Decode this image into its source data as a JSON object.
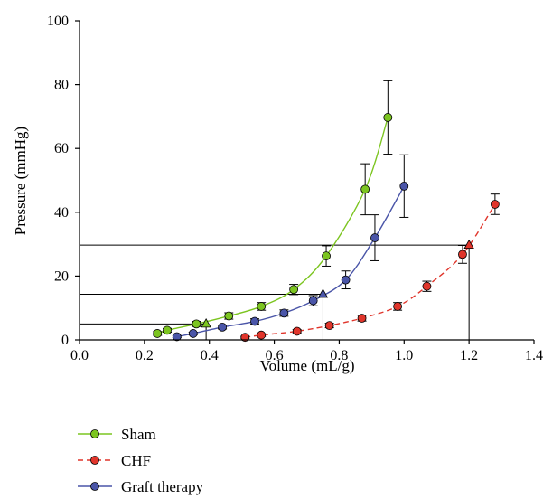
{
  "chart_data": {
    "type": "scatter",
    "xlabel": "Volume (mL/g)",
    "ylabel": "Pressure (mmHg)",
    "xlim": [
      0.0,
      1.4
    ],
    "ylim": [
      0,
      100
    ],
    "xticks": [
      "0.0",
      "0.2",
      "0.4",
      "0.6",
      "0.8",
      "1.0",
      "1.2",
      "1.4"
    ],
    "yticks": [
      "0",
      "20",
      "40",
      "60",
      "80",
      "100"
    ],
    "grid": false,
    "legend_position": "bottom-left",
    "series": [
      {
        "name": "Sham",
        "color": "#7cc520",
        "line_style": "solid",
        "points": [
          {
            "x": 0.24,
            "y": 2.0,
            "err": 0.6
          },
          {
            "x": 0.27,
            "y": 3.0,
            "err": 0.6
          },
          {
            "x": 0.36,
            "y": 5.0,
            "err": 0.8
          },
          {
            "x": 0.46,
            "y": 7.5,
            "err": 1.0
          },
          {
            "x": 0.56,
            "y": 10.5,
            "err": 1.2
          },
          {
            "x": 0.66,
            "y": 15.8,
            "err": 1.6
          },
          {
            "x": 0.76,
            "y": 26.3,
            "err": 3.2
          },
          {
            "x": 0.88,
            "y": 47.2,
            "err": 8.0
          },
          {
            "x": 0.95,
            "y": 69.7,
            "err": 11.5
          }
        ]
      },
      {
        "name": "CHF",
        "color": "#e0352b",
        "line_style": "dashed",
        "points": [
          {
            "x": 0.51,
            "y": 0.8,
            "err": 0.3
          },
          {
            "x": 0.56,
            "y": 1.5,
            "err": 0.4
          },
          {
            "x": 0.67,
            "y": 2.7,
            "err": 0.5
          },
          {
            "x": 0.77,
            "y": 4.5,
            "err": 0.7
          },
          {
            "x": 0.87,
            "y": 6.8,
            "err": 0.9
          },
          {
            "x": 0.98,
            "y": 10.5,
            "err": 1.2
          },
          {
            "x": 1.07,
            "y": 16.8,
            "err": 1.6
          },
          {
            "x": 1.18,
            "y": 26.8,
            "err": 2.8
          },
          {
            "x": 1.28,
            "y": 42.5,
            "err": 3.2
          }
        ]
      },
      {
        "name": "Graft therapy",
        "color": "#4a55a8",
        "line_style": "solid",
        "points": [
          {
            "x": 0.3,
            "y": 1.0,
            "err": 0.3
          },
          {
            "x": 0.35,
            "y": 2.0,
            "err": 0.4
          },
          {
            "x": 0.44,
            "y": 4.0,
            "err": 0.6
          },
          {
            "x": 0.54,
            "y": 5.8,
            "err": 0.8
          },
          {
            "x": 0.63,
            "y": 8.4,
            "err": 1.0
          },
          {
            "x": 0.72,
            "y": 12.3,
            "err": 1.6
          },
          {
            "x": 0.82,
            "y": 18.8,
            "err": 2.8
          },
          {
            "x": 0.91,
            "y": 32.0,
            "err": 7.2
          },
          {
            "x": 1.0,
            "y": 48.2,
            "err": 9.8
          }
        ]
      }
    ],
    "markers": [
      {
        "series": "Sham",
        "x": 0.39,
        "y": 5.0
      },
      {
        "series": "Graft therapy",
        "x": 0.75,
        "y": 14.3
      },
      {
        "series": "CHF",
        "x": 1.2,
        "y": 29.7
      }
    ]
  }
}
